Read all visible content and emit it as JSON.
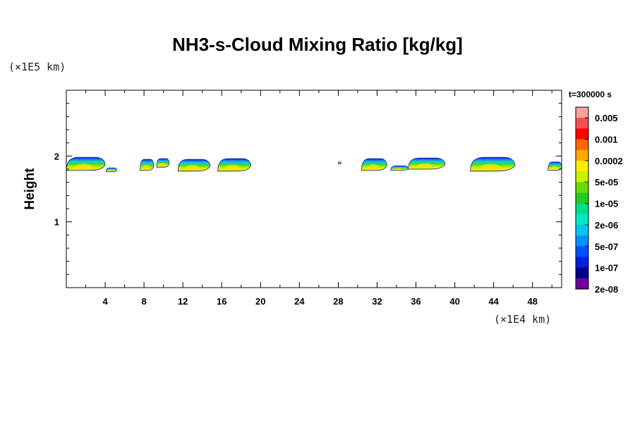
{
  "chart_data": {
    "type": "heatmap",
    "title": "NH3-s-Cloud Mixing Ratio [kg/kg]",
    "xlabel": "",
    "ylabel": "Height",
    "x_unit": "(×1E4 km)",
    "y_unit": "(×1E5 km)",
    "time_label": "t=300000 s",
    "xlim": [
      0,
      51
    ],
    "ylim": [
      0,
      3
    ],
    "x_ticks": [
      4,
      8,
      12,
      16,
      20,
      24,
      28,
      32,
      36,
      40,
      44,
      48
    ],
    "y_ticks": [
      1,
      2
    ],
    "colorbar": {
      "labels": [
        "0.005",
        "0.001",
        "0.0002",
        "5e-05",
        "1e-05",
        "2e-06",
        "5e-07",
        "1e-07",
        "2e-08"
      ],
      "colors": [
        "#f9a0a0",
        "#f25050",
        "#ff0000",
        "#ff6600",
        "#ffaa00",
        "#ffee00",
        "#c8f000",
        "#66dd00",
        "#22cc22",
        "#00dd88",
        "#00e8c8",
        "#00c8f0",
        "#0090ff",
        "#0050ff",
        "#0020dd",
        "#000090",
        "#7000a0"
      ]
    },
    "clouds": [
      {
        "x0": 0.0,
        "x1": 4.0,
        "y_top": 1.98,
        "y_bottom": 1.78
      },
      {
        "x0": 4.1,
        "x1": 5.2,
        "y_top": 1.82,
        "y_bottom": 1.76
      },
      {
        "x0": 7.6,
        "x1": 9.0,
        "y_top": 1.95,
        "y_bottom": 1.78
      },
      {
        "x0": 9.3,
        "x1": 10.6,
        "y_top": 1.96,
        "y_bottom": 1.83
      },
      {
        "x0": 11.5,
        "x1": 14.8,
        "y_top": 1.95,
        "y_bottom": 1.77
      },
      {
        "x0": 15.6,
        "x1": 19.0,
        "y_top": 1.96,
        "y_bottom": 1.77
      },
      {
        "x0": 28.0,
        "x1": 28.3,
        "y_top": 1.91,
        "y_bottom": 1.88
      },
      {
        "x0": 30.4,
        "x1": 33.0,
        "y_top": 1.96,
        "y_bottom": 1.78
      },
      {
        "x0": 33.4,
        "x1": 35.2,
        "y_top": 1.85,
        "y_bottom": 1.78
      },
      {
        "x0": 35.2,
        "x1": 39.0,
        "y_top": 1.97,
        "y_bottom": 1.8
      },
      {
        "x0": 41.6,
        "x1": 46.2,
        "y_top": 1.98,
        "y_bottom": 1.77
      },
      {
        "x0": 49.6,
        "x1": 51.0,
        "y_top": 1.91,
        "y_bottom": 1.78
      }
    ]
  }
}
